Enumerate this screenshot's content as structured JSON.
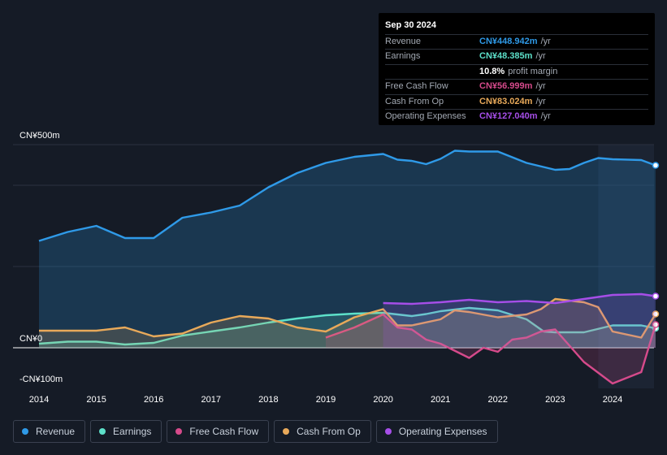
{
  "tooltip": {
    "date": "Sep 30 2024",
    "rows": [
      {
        "label": "Revenue",
        "value": "CN¥448.942m",
        "unit": "/yr",
        "color": "#2f9ae8"
      },
      {
        "label": "Earnings",
        "value": "CN¥48.385m",
        "unit": "/yr",
        "color": "#5de0c9"
      },
      {
        "label": "",
        "value": "10.8%",
        "unit": "profit margin",
        "color": "#ffffff"
      },
      {
        "label": "Free Cash Flow",
        "value": "CN¥56.999m",
        "unit": "/yr",
        "color": "#d64a8b"
      },
      {
        "label": "Cash From Op",
        "value": "CN¥83.024m",
        "unit": "/yr",
        "color": "#e8a95a"
      },
      {
        "label": "Operating Expenses",
        "value": "CN¥127.040m",
        "unit": "/yr",
        "color": "#a64ee8"
      }
    ]
  },
  "legend": [
    {
      "label": "Revenue",
      "color": "#2f9ae8"
    },
    {
      "label": "Earnings",
      "color": "#5de0c9"
    },
    {
      "label": "Free Cash Flow",
      "color": "#d64a8b"
    },
    {
      "label": "Cash From Op",
      "color": "#e8a95a"
    },
    {
      "label": "Operating Expenses",
      "color": "#a64ee8"
    }
  ],
  "chart_data": {
    "type": "area",
    "title": "",
    "ylabel": "CN¥",
    "y_tick_labels": {
      "top": "CN¥500m",
      "zero": "CN¥0",
      "bottom": "-CN¥100m"
    },
    "ylim": [
      -100,
      500
    ],
    "xlim": [
      2013.75,
      2024.8
    ],
    "x_ticks": [
      2014,
      2015,
      2016,
      2017,
      2018,
      2019,
      2020,
      2021,
      2022,
      2023,
      2024
    ],
    "forecast_shade_start": 2023.75,
    "series": [
      {
        "name": "Revenue",
        "color": "#2f9ae8",
        "points": [
          [
            2014.0,
            263
          ],
          [
            2014.5,
            285
          ],
          [
            2015.0,
            300
          ],
          [
            2015.5,
            270
          ],
          [
            2016.0,
            270
          ],
          [
            2016.5,
            320
          ],
          [
            2017.0,
            333
          ],
          [
            2017.5,
            350
          ],
          [
            2018.0,
            395
          ],
          [
            2018.5,
            430
          ],
          [
            2019.0,
            455
          ],
          [
            2019.5,
            470
          ],
          [
            2020.0,
            477
          ],
          [
            2020.25,
            463
          ],
          [
            2020.5,
            460
          ],
          [
            2020.75,
            452
          ],
          [
            2021.0,
            465
          ],
          [
            2021.25,
            485
          ],
          [
            2021.5,
            483
          ],
          [
            2022.0,
            483
          ],
          [
            2022.5,
            455
          ],
          [
            2023.0,
            438
          ],
          [
            2023.25,
            440
          ],
          [
            2023.5,
            455
          ],
          [
            2023.75,
            467
          ],
          [
            2024.0,
            464
          ],
          [
            2024.5,
            462
          ],
          [
            2024.75,
            449
          ]
        ]
      },
      {
        "name": "Earnings",
        "color": "#5de0c9",
        "points": [
          [
            2014.0,
            10
          ],
          [
            2014.5,
            15
          ],
          [
            2015.0,
            15
          ],
          [
            2015.5,
            8
          ],
          [
            2016.0,
            12
          ],
          [
            2016.5,
            30
          ],
          [
            2017.0,
            40
          ],
          [
            2017.5,
            50
          ],
          [
            2018.0,
            62
          ],
          [
            2018.5,
            72
          ],
          [
            2019.0,
            80
          ],
          [
            2019.5,
            84
          ],
          [
            2020.0,
            86
          ],
          [
            2020.5,
            78
          ],
          [
            2020.75,
            83
          ],
          [
            2021.0,
            90
          ],
          [
            2021.5,
            98
          ],
          [
            2022.0,
            92
          ],
          [
            2022.5,
            70
          ],
          [
            2022.8,
            40
          ],
          [
            2023.0,
            38
          ],
          [
            2023.5,
            38
          ],
          [
            2024.0,
            55
          ],
          [
            2024.5,
            55
          ],
          [
            2024.75,
            48
          ]
        ]
      },
      {
        "name": "Free Cash Flow",
        "color": "#d64a8b",
        "points": [
          [
            2019.0,
            25
          ],
          [
            2019.5,
            50
          ],
          [
            2020.0,
            82
          ],
          [
            2020.25,
            50
          ],
          [
            2020.5,
            45
          ],
          [
            2020.75,
            20
          ],
          [
            2021.0,
            10
          ],
          [
            2021.5,
            -25
          ],
          [
            2021.75,
            0
          ],
          [
            2022.0,
            -10
          ],
          [
            2022.25,
            20
          ],
          [
            2022.5,
            25
          ],
          [
            2022.75,
            40
          ],
          [
            2023.0,
            45
          ],
          [
            2023.5,
            -35
          ],
          [
            2024.0,
            -88
          ],
          [
            2024.5,
            -60
          ],
          [
            2024.75,
            57
          ]
        ]
      },
      {
        "name": "Cash From Op",
        "color": "#e8a95a",
        "points": [
          [
            2014.0,
            42
          ],
          [
            2015.0,
            42
          ],
          [
            2015.5,
            50
          ],
          [
            2016.0,
            28
          ],
          [
            2016.5,
            35
          ],
          [
            2017.0,
            62
          ],
          [
            2017.5,
            78
          ],
          [
            2018.0,
            72
          ],
          [
            2018.5,
            50
          ],
          [
            2019.0,
            40
          ],
          [
            2019.5,
            75
          ],
          [
            2020.0,
            95
          ],
          [
            2020.25,
            55
          ],
          [
            2020.5,
            55
          ],
          [
            2021.0,
            70
          ],
          [
            2021.25,
            92
          ],
          [
            2021.5,
            88
          ],
          [
            2022.0,
            75
          ],
          [
            2022.5,
            82
          ],
          [
            2022.75,
            95
          ],
          [
            2023.0,
            120
          ],
          [
            2023.5,
            112
          ],
          [
            2023.75,
            100
          ],
          [
            2024.0,
            40
          ],
          [
            2024.5,
            25
          ],
          [
            2024.75,
            83
          ]
        ]
      },
      {
        "name": "Operating Expenses",
        "color": "#a64ee8",
        "points": [
          [
            2020.0,
            110
          ],
          [
            2020.5,
            108
          ],
          [
            2021.0,
            112
          ],
          [
            2021.5,
            118
          ],
          [
            2022.0,
            112
          ],
          [
            2022.5,
            115
          ],
          [
            2023.0,
            110
          ],
          [
            2023.5,
            120
          ],
          [
            2024.0,
            130
          ],
          [
            2024.5,
            132
          ],
          [
            2024.75,
            127
          ]
        ]
      }
    ]
  }
}
